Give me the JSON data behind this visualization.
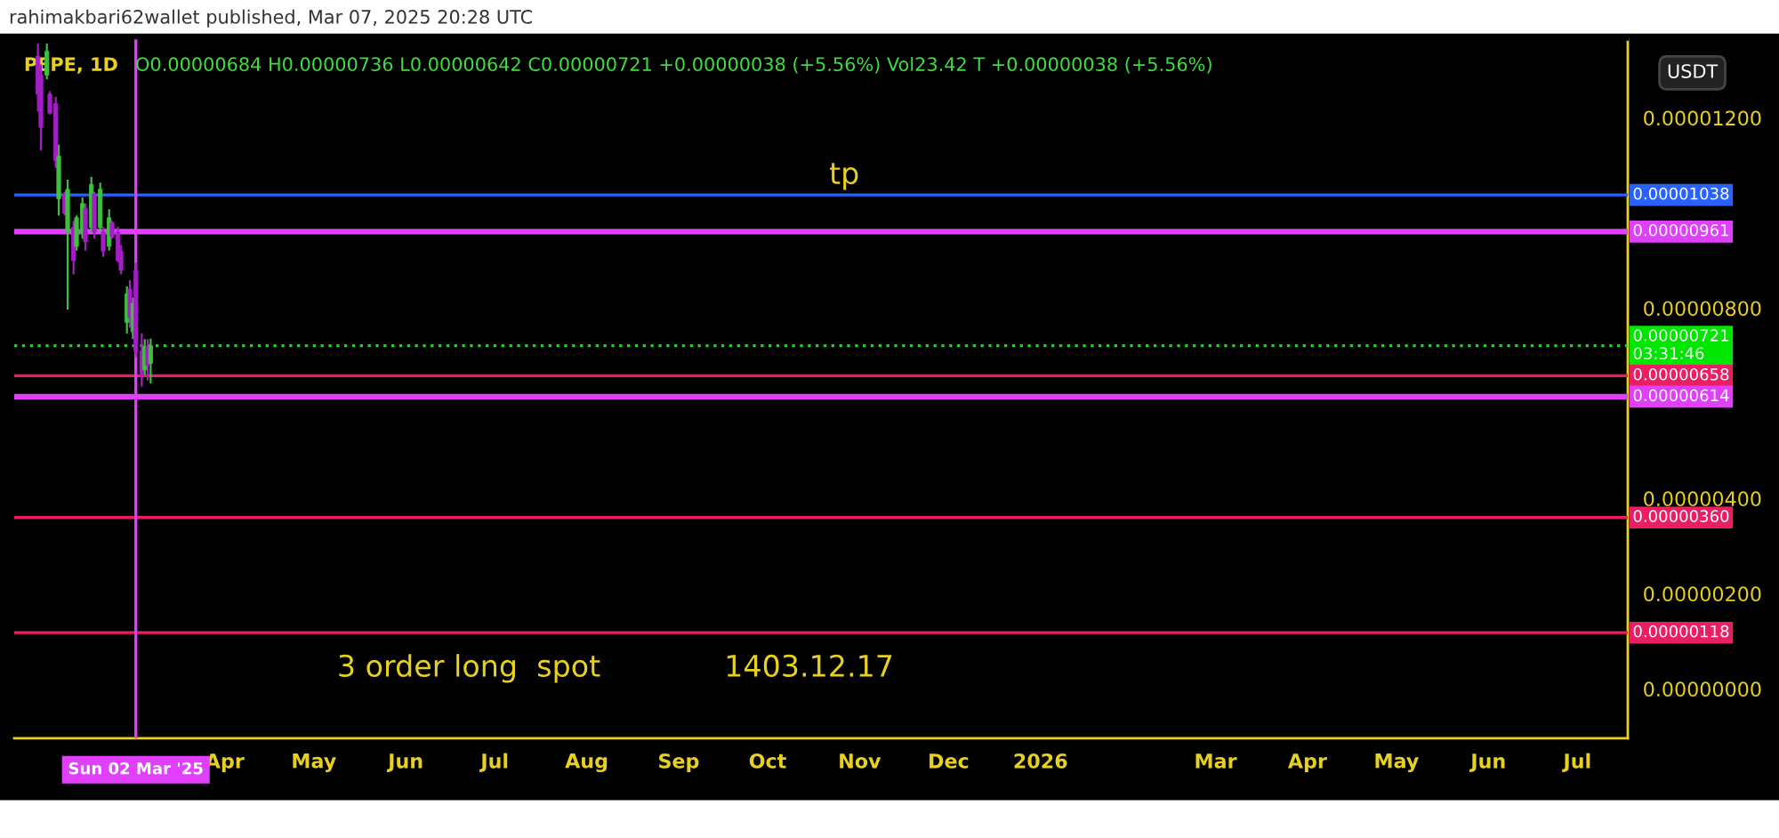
{
  "chart_data": {
    "type": "candlestick",
    "title": "PEPE, 1D",
    "subtitle": "O0.00000684 H0.00000736 L0.00000642 C0.00000721 +0.00000038 (+5.56%) Vol23.42 T +0.00000038 (+5.56%)",
    "ylabel": "USDT",
    "x": [
      "2025-01-28",
      "2025-01-29",
      "2025-01-31",
      "2025-02-01",
      "2025-02-03",
      "2025-02-04",
      "2025-02-06",
      "2025-02-07",
      "2025-02-09",
      "2025-02-10",
      "2025-02-12",
      "2025-02-13",
      "2025-02-15",
      "2025-02-16",
      "2025-02-18",
      "2025-02-19",
      "2025-02-21",
      "2025-02-22",
      "2025-02-24",
      "2025-02-25",
      "2025-02-27",
      "2025-02-28",
      "2025-03-01",
      "2025-03-02",
      "2025-03-04",
      "2025-03-05",
      "2025-03-06",
      "2025-03-07"
    ],
    "ohlc": [
      [
        1.33e-05,
        1.356e-05,
        1.213e-05,
        1.25e-05
      ],
      [
        1.29e-05,
        1.312e-05,
        1.132e-05,
        1.18e-05
      ],
      [
        1.29e-05,
        1.356e-05,
        1.281e-05,
        1.34e-05
      ],
      [
        1.25e-05,
        1.256e-05,
        1.207e-05,
        1.21e-05
      ],
      [
        1.23e-05,
        1.244e-05,
        1.095e-05,
        1.11e-05
      ],
      [
        1.03e-05,
        1.144e-05,
        9.95e-06,
        1.12e-05
      ],
      [
        1.04e-05,
        1.045e-05,
        9.95e-06,
        1e-05
      ],
      [
        9.6e-06,
        1.07e-05,
        7.97e-06,
        1.05e-05
      ],
      [
        9.7e-06,
        9.83e-06,
        8.71e-06,
        9e-06
      ],
      [
        9.3e-06,
        9.95e-06,
        9.21e-06,
        9.9e-06
      ],
      [
        9.6e-06,
        1.033e-05,
        9.46e-06,
        1.02e-05
      ],
      [
        1.01e-05,
        1.02e-05,
        9.21e-06,
        9.4e-06
      ],
      [
        9.7e-06,
        1.076e-05,
        9.58e-06,
        1.06e-05
      ],
      [
        1.04e-05,
        1.045e-05,
        9.46e-06,
        9.6e-06
      ],
      [
        9.7e-06,
        1.064e-05,
        9.58e-06,
        1.05e-05
      ],
      [
        9.6e-06,
        9.71e-06,
        9.08e-06,
        9.2e-06
      ],
      [
        9.3e-06,
        1.008e-05,
        9.21e-06,
        9.9e-06
      ],
      [
        9.8e-06,
        9.83e-06,
        9.46e-06,
        9.5e-06
      ],
      [
        9.6e-06,
        9.71e-06,
        8.96e-06,
        9e-06
      ],
      [
        9.2e-06,
        9.33e-06,
        8.71e-06,
        8.8e-06
      ],
      [
        7.7e-06,
        8.46e-06,
        7.47e-06,
        8.3e-06
      ],
      [
        8.4e-06,
        8.59e-06,
        7.59e-06,
        7.8e-06
      ],
      [
        7.5e-06,
        8.22e-06,
        7.35e-06,
        8.1e-06
      ],
      [
        8.8e-06,
        8.96e-06,
        6.97e-06,
        7.1e-06
      ],
      [
        7.1e-06,
        7.47e-06,
        6.35e-06,
        6.6e-06
      ],
      [
        6.7e-06,
        7.35e-06,
        6.6e-06,
        7.2e-06
      ],
      [
        7.2e-06,
        7.35e-06,
        6.48e-06,
        6.8e-06
      ],
      [
        6.84e-06,
        7.36e-06,
        6.42e-06,
        7.21e-06
      ]
    ],
    "colors": [
      "#a31fc4",
      "#a31fc4",
      "#3fbf3f",
      "#a31fc4",
      "#a31fc4",
      "#3fbf3f",
      "#a31fc4",
      "#3fbf3f",
      "#a31fc4",
      "#3fbf3f",
      "#3fbf3f",
      "#a31fc4",
      "#3fbf3f",
      "#a31fc4",
      "#3fbf3f",
      "#a31fc4",
      "#3fbf3f",
      "#a31fc4",
      "#a31fc4",
      "#a31fc4",
      "#3fbf3f",
      "#a31fc4",
      "#3fbf3f",
      "#a31fc4",
      "#a31fc4",
      "#3fbf3f",
      "#a31fc4",
      "#3fbf3f"
    ],
    "xlim": [
      "2025-01-20",
      "2026-07-18"
    ],
    "xticks": [
      {
        "value": "2025-04-01",
        "label": "Apr"
      },
      {
        "value": "2025-05-01",
        "label": "May"
      },
      {
        "value": "2025-06-01",
        "label": "Jun"
      },
      {
        "value": "2025-07-01",
        "label": "Jul"
      },
      {
        "value": "2025-08-01",
        "label": "Aug"
      },
      {
        "value": "2025-09-01",
        "label": "Sep"
      },
      {
        "value": "2025-10-01",
        "label": "Oct"
      },
      {
        "value": "2025-11-01",
        "label": "Nov"
      },
      {
        "value": "2025-12-01",
        "label": "Dec"
      },
      {
        "value": "2026-01-01",
        "label": "2026"
      },
      {
        "value": "2026-03-01",
        "label": "Mar"
      },
      {
        "value": "2026-04-01",
        "label": "Apr"
      },
      {
        "value": "2026-05-01",
        "label": "May"
      },
      {
        "value": "2026-06-01",
        "label": "Jun"
      },
      {
        "value": "2026-07-01",
        "label": "Jul"
      }
    ],
    "ylim": [
      -1.04e-06,
      1.365e-05
    ],
    "yticks": [
      {
        "value": 0,
        "label": "0.00000000"
      },
      {
        "value": 2e-06,
        "label": "0.00000200"
      },
      {
        "value": 4e-06,
        "label": "0.00000400"
      },
      {
        "value": 8e-06,
        "label": "0.00000800"
      },
      {
        "value": 1.2e-05,
        "label": "0.00001200"
      }
    ],
    "ref_lines": [
      {
        "axis": "y",
        "value": 1.038e-05,
        "label": "0.00001038",
        "color": "#2962ff",
        "line_style": "solid"
      },
      {
        "axis": "y",
        "value": 9.61e-06,
        "label": "0.00000961",
        "color": "#e040fb",
        "line_style": "solid"
      },
      {
        "axis": "y",
        "value": 7.21e-06,
        "label": "0.00000721\n03:31:46",
        "color": "#00e600",
        "line_style": "dotted"
      },
      {
        "axis": "y",
        "value": 6.58e-06,
        "label": "0.00000658",
        "color": "#e91e63",
        "line_style": "solid"
      },
      {
        "axis": "y",
        "value": 6.14e-06,
        "label": "0.00000614",
        "color": "#e040fb",
        "line_style": "solid"
      },
      {
        "axis": "y",
        "value": 3.6e-06,
        "label": "0.00000360",
        "color": "#e91e63",
        "line_style": "solid"
      },
      {
        "axis": "y",
        "value": 1.18e-06,
        "label": "0.00000118",
        "color": "#e91e63",
        "line_style": "solid"
      },
      {
        "axis": "x",
        "value": "2025-03-02",
        "label": "Sun 02 Mar '25",
        "color": "#e040fb",
        "line_style": "solid"
      }
    ],
    "annotations": [
      "tp",
      "3 order long  spot",
      "1403.12.17",
      "rahimakbari62wallet published, Mar 07, 2025 20:28 UTC"
    ],
    "grid": false,
    "legend": false
  }
}
